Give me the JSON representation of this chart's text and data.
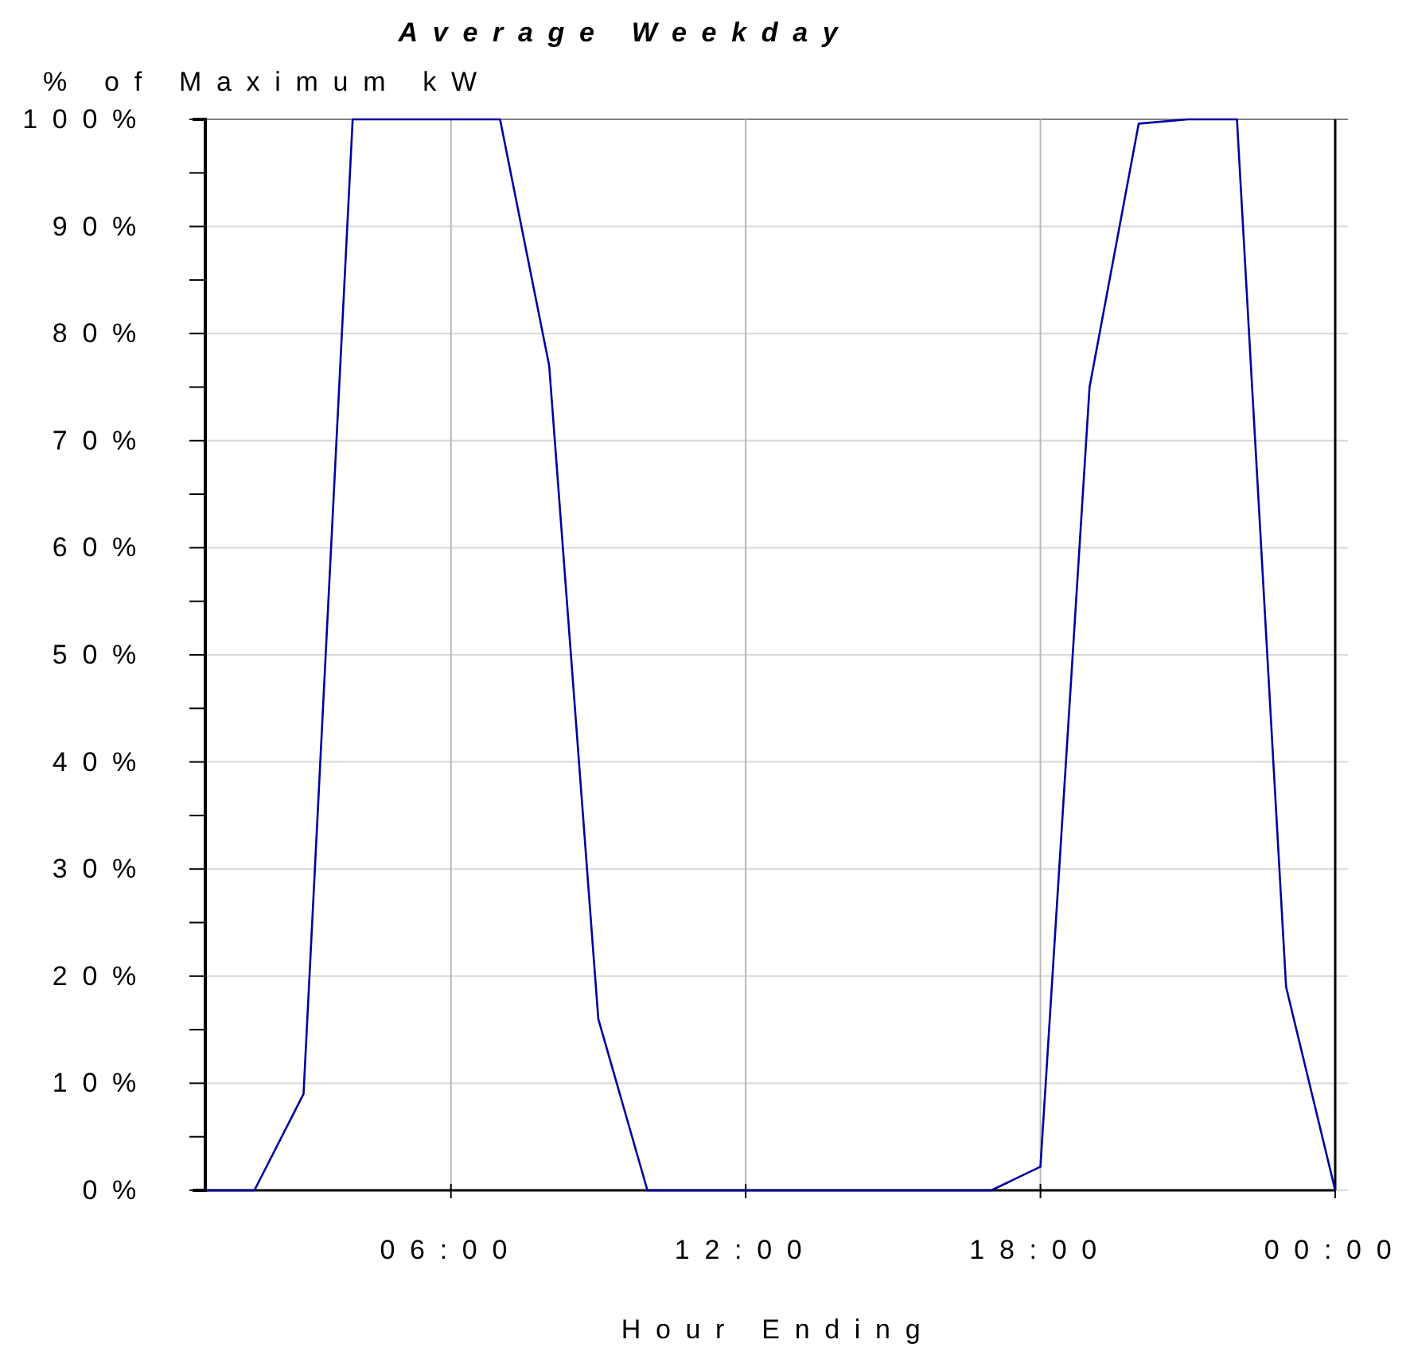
{
  "chart_data": {
    "type": "line",
    "title": "Average Weekday",
    "ylabel": "% of Maximum kW",
    "xlabel": "Hour Ending",
    "x": [
      1,
      2,
      3,
      4,
      5,
      6,
      7,
      8,
      9,
      10,
      11,
      12,
      13,
      14,
      15,
      16,
      17,
      18,
      19,
      20,
      21,
      22,
      23,
      24
    ],
    "series": [
      {
        "color": "#0000a0",
        "values": [
          0,
          0,
          9,
          100,
          100,
          100,
          100,
          77,
          16,
          0,
          0,
          0,
          0,
          0,
          0,
          0,
          0,
          2.2,
          75,
          99.6,
          100,
          100,
          19,
          0
        ]
      }
    ],
    "xlim": [
      1,
      24
    ],
    "xticks": [
      {
        "value": 6,
        "label": "06:00"
      },
      {
        "value": 12,
        "label": "12:00"
      },
      {
        "value": 18,
        "label": "18:00"
      },
      {
        "value": 24,
        "label": "00:00"
      }
    ],
    "ylim": [
      0,
      100
    ],
    "yticks": [
      {
        "value": 0,
        "label": "0%"
      },
      {
        "value": 5,
        "label": null
      },
      {
        "value": 10,
        "label": "10%"
      },
      {
        "value": 15,
        "label": null
      },
      {
        "value": 20,
        "label": "20%"
      },
      {
        "value": 25,
        "label": null
      },
      {
        "value": 30,
        "label": "30%"
      },
      {
        "value": 35,
        "label": null
      },
      {
        "value": 40,
        "label": "40%"
      },
      {
        "value": 45,
        "label": null
      },
      {
        "value": 50,
        "label": "50%"
      },
      {
        "value": 55,
        "label": null
      },
      {
        "value": 60,
        "label": "60%"
      },
      {
        "value": 65,
        "label": null
      },
      {
        "value": 70,
        "label": "70%"
      },
      {
        "value": 75,
        "label": null
      },
      {
        "value": 80,
        "label": "80%"
      },
      {
        "value": 85,
        "label": null
      },
      {
        "value": 90,
        "label": "90%"
      },
      {
        "value": 95,
        "label": null
      },
      {
        "value": 100,
        "label": "100%"
      }
    ],
    "grid": true,
    "marker": "none",
    "line_style": "solid"
  }
}
